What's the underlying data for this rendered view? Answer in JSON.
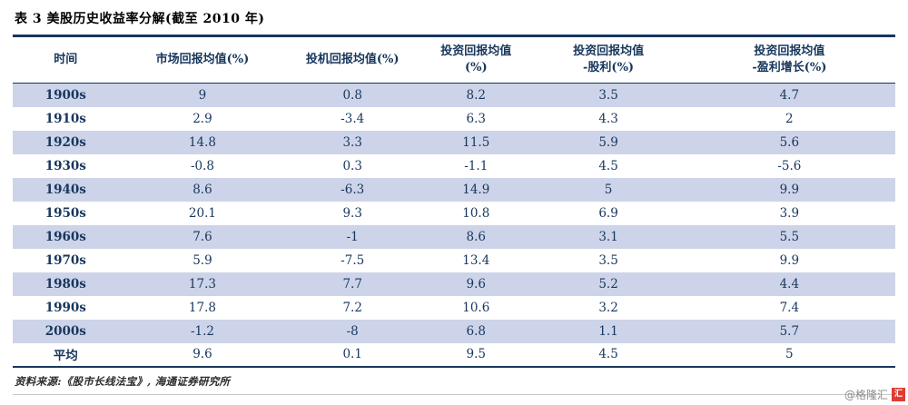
{
  "chart_data": {
    "type": "table",
    "title": "表 3 美股历史收益率分解(截至 2010 年)",
    "columns": [
      "时间",
      "市场回报均值(%)",
      "投机回报均值(%)",
      "投资回报均值(%)",
      "投资回报均值-股利(%)",
      "投资回报均值-盈利增长(%)"
    ],
    "rows": [
      [
        "1900s",
        "9",
        "0.8",
        "8.2",
        "3.5",
        "4.7"
      ],
      [
        "1910s",
        "2.9",
        "-3.4",
        "6.3",
        "4.3",
        "2"
      ],
      [
        "1920s",
        "14.8",
        "3.3",
        "11.5",
        "5.9",
        "5.6"
      ],
      [
        "1930s",
        "-0.8",
        "0.3",
        "-1.1",
        "4.5",
        "-5.6"
      ],
      [
        "1940s",
        "8.6",
        "-6.3",
        "14.9",
        "5",
        "9.9"
      ],
      [
        "1950s",
        "20.1",
        "9.3",
        "10.8",
        "6.9",
        "3.9"
      ],
      [
        "1960s",
        "7.6",
        "-1",
        "8.6",
        "3.1",
        "5.5"
      ],
      [
        "1970s",
        "5.9",
        "-7.5",
        "13.4",
        "3.5",
        "9.9"
      ],
      [
        "1980s",
        "17.3",
        "7.7",
        "9.6",
        "5.2",
        "4.4"
      ],
      [
        "1990s",
        "17.8",
        "7.2",
        "10.6",
        "3.2",
        "7.4"
      ],
      [
        "2000s",
        "-1.2",
        "-8",
        "6.8",
        "1.1",
        "5.7"
      ],
      [
        "平均",
        "9.6",
        "0.1",
        "9.5",
        "4.5",
        "5"
      ]
    ]
  },
  "header_display": [
    "时间",
    "市场回报均值(%)",
    "投机回报均值(%)",
    "投资回报均值\n(%)",
    "投资回报均值\n-股利(%)",
    "投资回报均值\n-盈利增长(%)"
  ],
  "footer": {
    "source": "资料来源:《股市长线法宝》, 海通证券研究所"
  },
  "watermark": {
    "label": "@格隆汇",
    "logo_text": "汇"
  },
  "colors": {
    "accent_navy": "#17365d",
    "row_shade": "#cdd4e9",
    "logo_red": "#e03c31"
  }
}
